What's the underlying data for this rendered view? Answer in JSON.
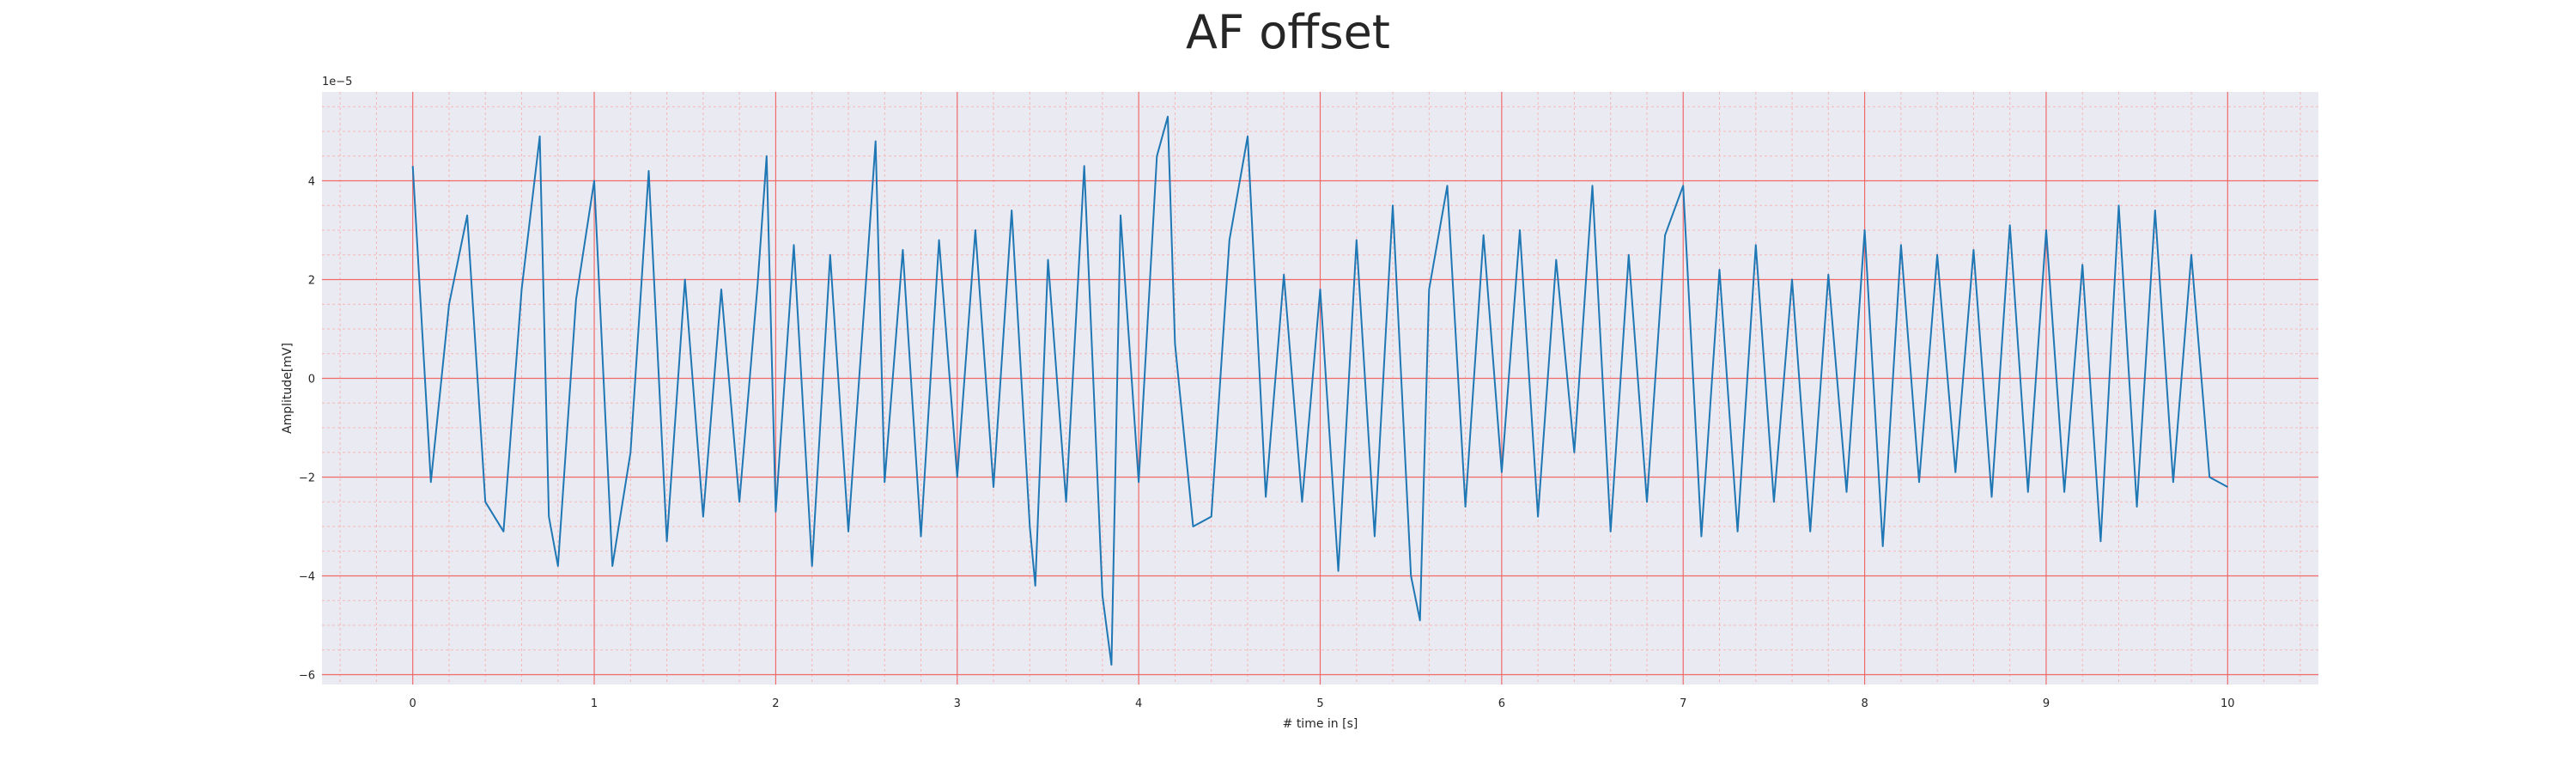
{
  "chart_data": {
    "type": "line",
    "title": "AF offset",
    "xlabel": "# time in [s]",
    "ylabel": "Amplitude[mV]",
    "y_offset_text": "1e−5",
    "xlim": [
      -0.5,
      10.5
    ],
    "ylim": [
      -6.2e-05,
      5.8e-05
    ],
    "x_ticks": [
      0,
      1,
      2,
      3,
      4,
      5,
      6,
      7,
      8,
      9,
      10
    ],
    "x_tick_labels": [
      "0",
      "1",
      "2",
      "3",
      "4",
      "5",
      "6",
      "7",
      "8",
      "9",
      "10"
    ],
    "y_ticks": [
      -6e-05,
      -4e-05,
      -2e-05,
      0,
      2e-05,
      4e-05
    ],
    "y_tick_labels": [
      "−6",
      "−4",
      "−2",
      "0",
      "2",
      "4"
    ],
    "grid": true,
    "minor_grid": true,
    "colors": {
      "background": "#eaeaf2",
      "major_grid": "#f06a6a",
      "minor_grid": "#f5b8b8",
      "series": "#1f77b4"
    },
    "series": [
      {
        "x": [
          0,
          0.1,
          0.2,
          0.3,
          0.4,
          0.5,
          0.6,
          0.7,
          0.75,
          0.8,
          0.9,
          1.0,
          1.1,
          1.2,
          1.3,
          1.4,
          1.5,
          1.6,
          1.7,
          1.8,
          1.9,
          1.95,
          2.0,
          2.1,
          2.2,
          2.3,
          2.4,
          2.5,
          2.55,
          2.6,
          2.7,
          2.8,
          2.9,
          3.0,
          3.1,
          3.2,
          3.3,
          3.4,
          3.43,
          3.5,
          3.6,
          3.7,
          3.8,
          3.85,
          3.9,
          4.0,
          4.1,
          4.16,
          4.2,
          4.3,
          4.4,
          4.5,
          4.6,
          4.7,
          4.8,
          4.9,
          5.0,
          5.1,
          5.2,
          5.3,
          5.4,
          5.5,
          5.55,
          5.6,
          5.7,
          5.8,
          5.9,
          6.0,
          6.1,
          6.2,
          6.3,
          6.4,
          6.5,
          6.6,
          6.7,
          6.8,
          6.9,
          7.0,
          7.1,
          7.2,
          7.3,
          7.4,
          7.5,
          7.6,
          7.7,
          7.8,
          7.9,
          8.0,
          8.1,
          8.2,
          8.3,
          8.4,
          8.5,
          8.6,
          8.7,
          8.8,
          8.9,
          9.0,
          9.1,
          9.2,
          9.3,
          9.4,
          9.5,
          9.6,
          9.7,
          9.8,
          9.9,
          10.0
        ],
        "y": [
          4.3e-05,
          -2.1e-05,
          1.5e-05,
          3.3e-05,
          -2.5e-05,
          -3.1e-05,
          1.8e-05,
          4.9e-05,
          -2.8e-05,
          -3.8e-05,
          1.6e-05,
          4e-05,
          -3.8e-05,
          -1.5e-05,
          4.2e-05,
          -3.3e-05,
          2e-05,
          -2.8e-05,
          1.8e-05,
          -2.5e-05,
          1.9e-05,
          4.5e-05,
          -2.7e-05,
          2.7e-05,
          -3.8e-05,
          2.5e-05,
          -3.1e-05,
          2.1e-05,
          4.8e-05,
          -2.1e-05,
          2.6e-05,
          -3.2e-05,
          2.8e-05,
          -2e-05,
          3e-05,
          -2.2e-05,
          3.4e-05,
          -3e-05,
          -4.2e-05,
          2.4e-05,
          -2.5e-05,
          4.3e-05,
          -4.4e-05,
          -5.8e-05,
          3.3e-05,
          -2.1e-05,
          4.5e-05,
          5.3e-05,
          7e-06,
          -3e-05,
          -2.8e-05,
          2.8e-05,
          4.9e-05,
          -2.4e-05,
          2.1e-05,
          -2.5e-05,
          1.8e-05,
          -3.9e-05,
          2.8e-05,
          -3.2e-05,
          3.5e-05,
          -4e-05,
          -4.9e-05,
          1.8e-05,
          3.9e-05,
          -2.6e-05,
          2.9e-05,
          -1.9e-05,
          3e-05,
          -2.8e-05,
          2.4e-05,
          -1.5e-05,
          3.9e-05,
          -3.1e-05,
          2.5e-05,
          -2.5e-05,
          2.9e-05,
          3.9e-05,
          -3.2e-05,
          2.2e-05,
          -3.1e-05,
          2.7e-05,
          -2.5e-05,
          2e-05,
          -3.1e-05,
          2.1e-05,
          -2.3e-05,
          3e-05,
          -3.4e-05,
          2.7e-05,
          -2.1e-05,
          2.5e-05,
          -1.9e-05,
          2.6e-05,
          -2.4e-05,
          3.1e-05,
          -2.3e-05,
          3e-05,
          -2.3e-05,
          2.3e-05,
          -3.3e-05,
          3.5e-05,
          -2.6e-05,
          3.4e-05,
          -2.1e-05,
          2.5e-05,
          -2e-05,
          -2.2e-05
        ]
      }
    ]
  }
}
